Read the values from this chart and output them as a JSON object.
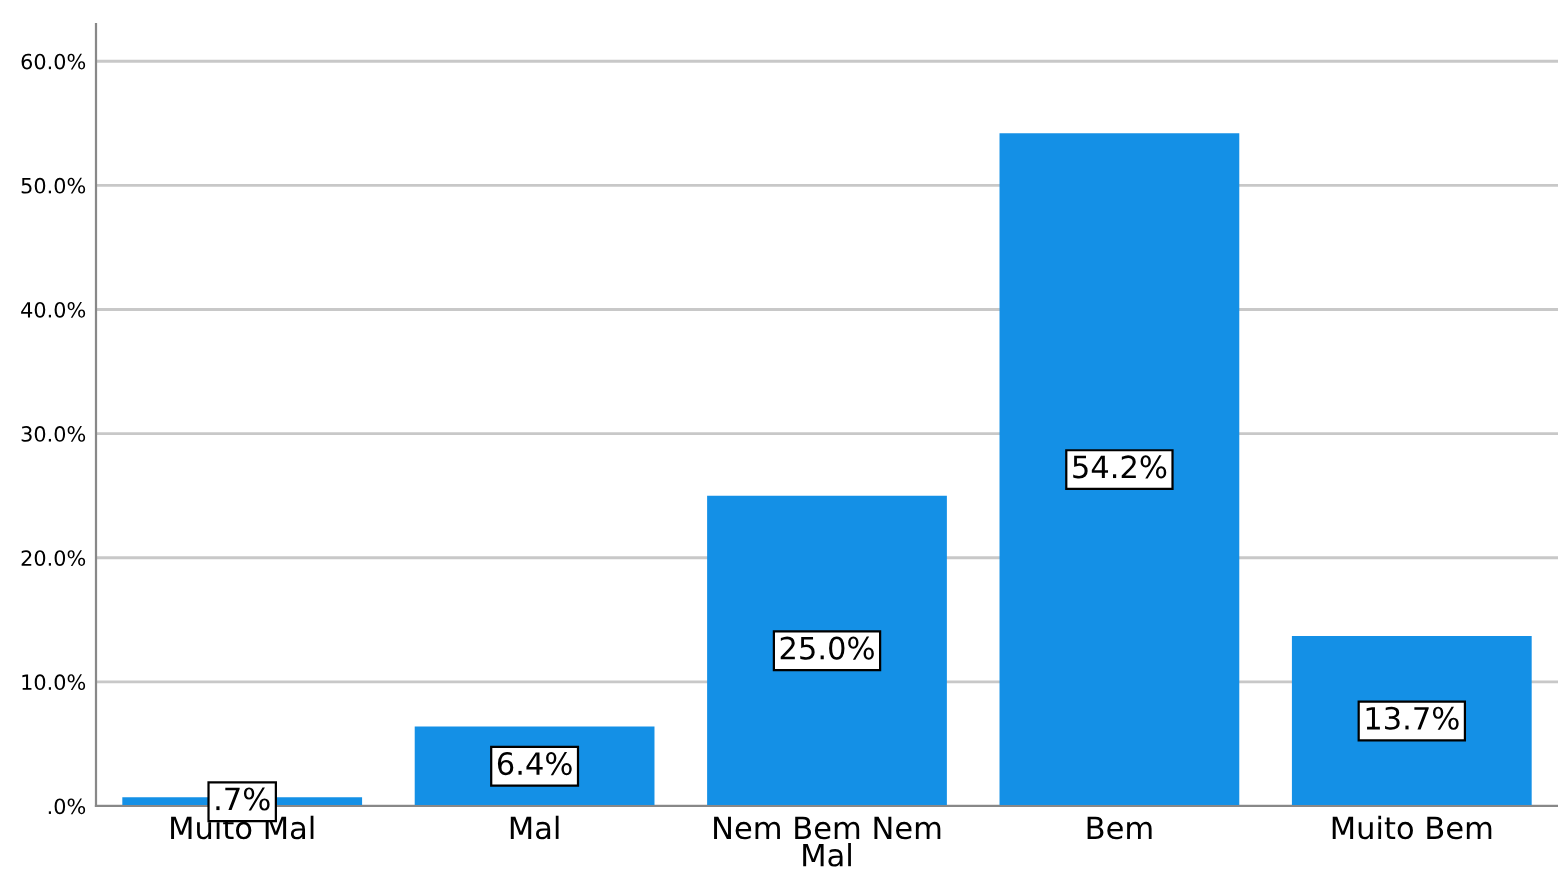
{
  "chart_data": {
    "type": "bar",
    "categories": [
      "Muito Mal",
      "Mal",
      "Nem Bem Nem\nMal",
      "Bem",
      "Muito Bem"
    ],
    "values": [
      0.7,
      6.4,
      25.0,
      54.2,
      13.7
    ],
    "value_labels": [
      ".7%",
      "6.4%",
      "25.0%",
      "54.2%",
      "13.7%"
    ],
    "color": "#1490e6",
    "ylim": [
      0,
      63
    ],
    "yticks": [
      {
        "value": 0,
        "label": ".0%"
      },
      {
        "value": 10,
        "label": "10.0%"
      },
      {
        "value": 20,
        "label": "20.0%"
      },
      {
        "value": 30,
        "label": "30.0%"
      },
      {
        "value": 40,
        "label": "40.0%"
      },
      {
        "value": 50,
        "label": "50.0%"
      },
      {
        "value": 60,
        "label": "60.0%"
      }
    ],
    "grid": "y"
  }
}
